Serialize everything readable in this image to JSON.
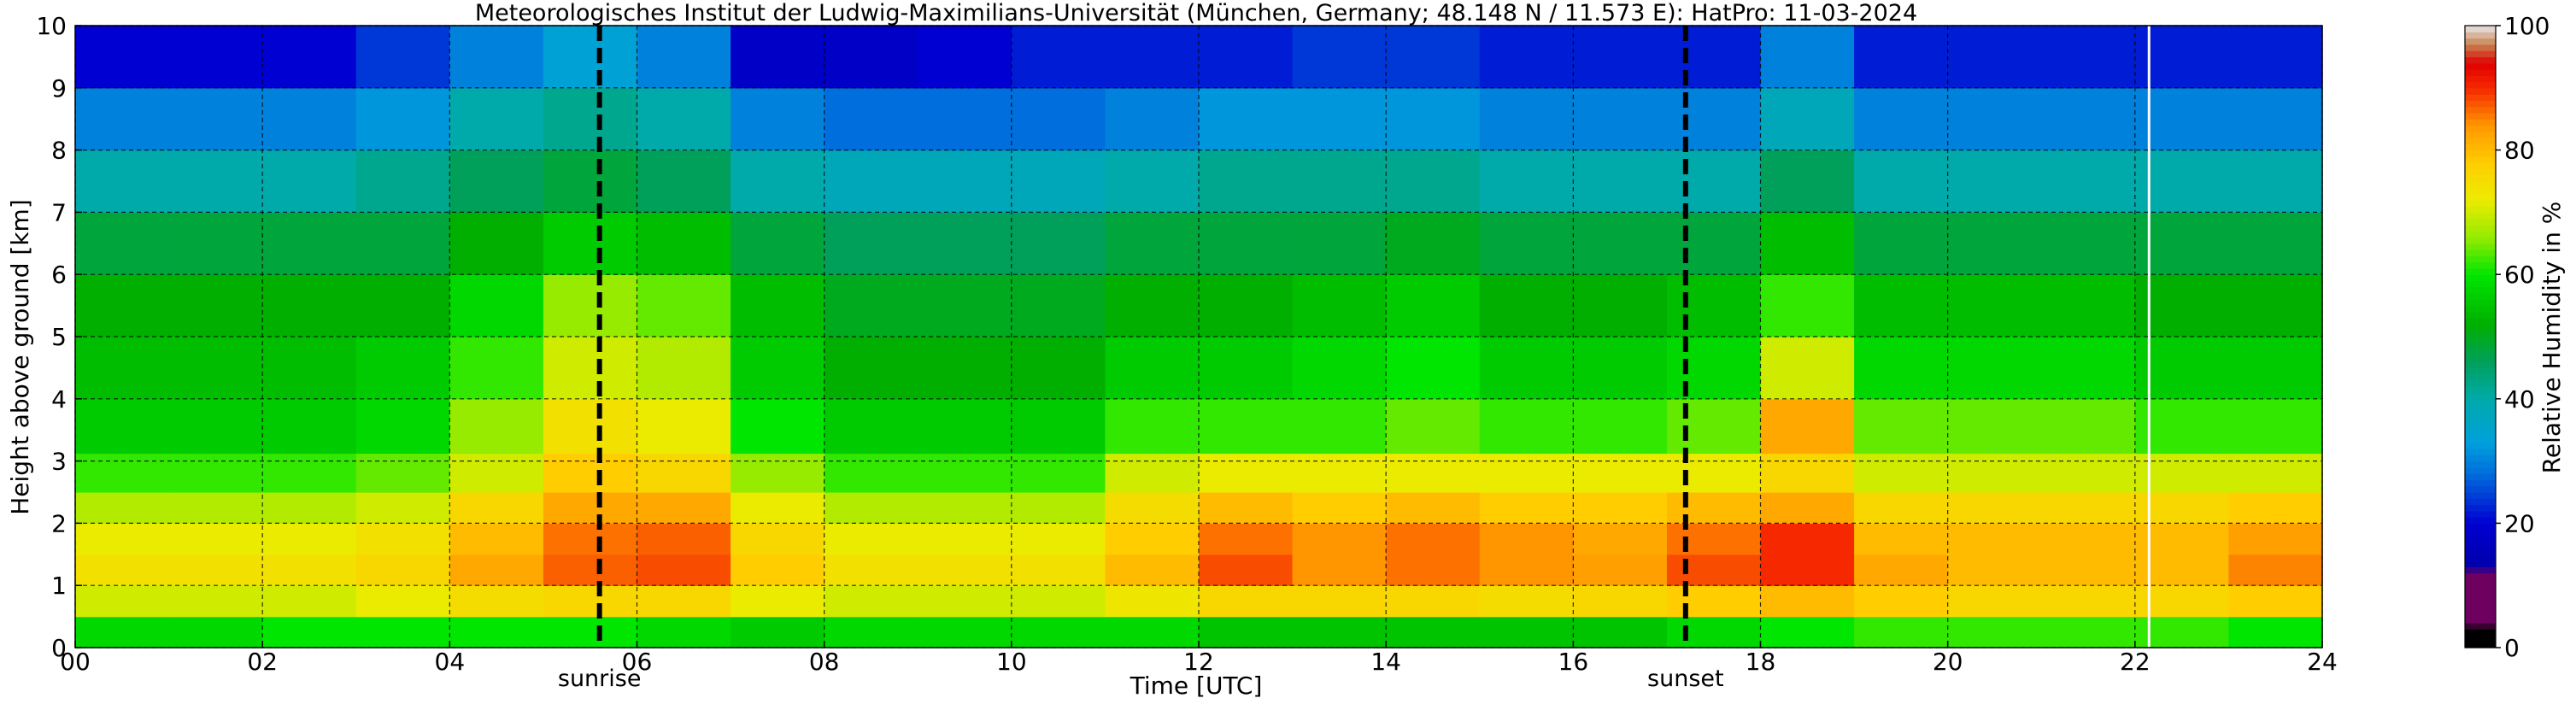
{
  "chart_data": {
    "type": "heatmap",
    "title": "Meteorologisches Institut der Ludwig-Maximilians-Universität (München, Germany; 48.148 N / 11.573 E):    HatPro: 11-03-2024",
    "xlabel": "Time [UTC]",
    "ylabel": "Height above ground [km]",
    "xlim": [
      0,
      24
    ],
    "ylim": [
      0,
      10
    ],
    "xticks": [
      "00",
      "02",
      "04",
      "06",
      "08",
      "10",
      "12",
      "14",
      "16",
      "18",
      "20",
      "22",
      "24"
    ],
    "xtick_values": [
      0,
      2,
      4,
      6,
      8,
      10,
      12,
      14,
      16,
      18,
      20,
      22,
      24
    ],
    "yticks": [
      "0",
      "1",
      "2",
      "3",
      "4",
      "5",
      "6",
      "7",
      "8",
      "9",
      "10"
    ],
    "ytick_values": [
      0,
      1,
      2,
      3,
      4,
      5,
      6,
      7,
      8,
      9,
      10
    ],
    "grid": true,
    "colorbar": {
      "label": "Relative Humidity in %",
      "ticks": [
        "0",
        "20",
        "40",
        "60",
        "80",
        "100"
      ],
      "tick_values": [
        0,
        20,
        40,
        60,
        80,
        100
      ],
      "range": [
        0,
        100
      ]
    },
    "annotations": [
      {
        "label": "sunrise",
        "time": 5.6
      },
      {
        "label": "sunset",
        "time": 17.2
      }
    ],
    "data_gap_times": [
      22.15
    ],
    "z_unit": "%",
    "heights_km": [
      0.25,
      0.75,
      1.25,
      1.75,
      2.25,
      2.75,
      3.5,
      4.5,
      5.5,
      6.5,
      7.5,
      8.5,
      9.5
    ],
    "times_utc": [
      0.5,
      1.5,
      2.5,
      3.5,
      4.5,
      5.5,
      6.5,
      7.5,
      8.5,
      9.5,
      10.5,
      11.5,
      12.5,
      13.5,
      14.5,
      15.5,
      16.5,
      17.5,
      18.5,
      19.5,
      20.5,
      21.5,
      22.5,
      23.5
    ],
    "relative_humidity": [
      [
        58,
        58,
        60,
        60,
        60,
        60,
        58,
        56,
        58,
        58,
        58,
        58,
        55,
        55,
        55,
        55,
        55,
        58,
        60,
        62,
        62,
        62,
        62,
        60
      ],
      [
        70,
        70,
        70,
        72,
        75,
        76,
        76,
        72,
        70,
        70,
        70,
        73,
        76,
        76,
        76,
        75,
        76,
        78,
        80,
        78,
        76,
        76,
        76,
        78
      ],
      [
        74,
        74,
        74,
        76,
        82,
        87,
        88,
        78,
        74,
        74,
        74,
        80,
        88,
        84,
        86,
        84,
        83,
        88,
        90,
        82,
        80,
        80,
        80,
        85
      ],
      [
        72,
        72,
        72,
        74,
        80,
        86,
        87,
        76,
        72,
        72,
        72,
        78,
        86,
        84,
        86,
        84,
        82,
        86,
        90,
        80,
        80,
        80,
        80,
        83
      ],
      [
        68,
        68,
        68,
        70,
        76,
        82,
        82,
        72,
        68,
        68,
        68,
        75,
        80,
        78,
        80,
        78,
        78,
        80,
        82,
        76,
        76,
        76,
        76,
        78
      ],
      [
        62,
        62,
        62,
        64,
        70,
        78,
        76,
        66,
        62,
        62,
        62,
        70,
        72,
        72,
        72,
        72,
        72,
        72,
        76,
        70,
        70,
        70,
        70,
        70
      ],
      [
        56,
        56,
        56,
        58,
        66,
        74,
        72,
        60,
        56,
        56,
        56,
        62,
        62,
        62,
        64,
        62,
        62,
        64,
        82,
        64,
        64,
        64,
        62,
        62
      ],
      [
        54,
        54,
        54,
        56,
        62,
        70,
        68,
        56,
        52,
        52,
        52,
        56,
        56,
        58,
        60,
        56,
        56,
        58,
        70,
        58,
        58,
        58,
        56,
        56
      ],
      [
        52,
        52,
        52,
        52,
        58,
        66,
        64,
        54,
        50,
        50,
        50,
        52,
        52,
        54,
        56,
        52,
        52,
        54,
        62,
        54,
        54,
        54,
        52,
        52
      ],
      [
        48,
        48,
        48,
        48,
        52,
        56,
        54,
        48,
        46,
        46,
        46,
        48,
        48,
        48,
        50,
        48,
        48,
        48,
        54,
        48,
        48,
        48,
        48,
        48
      ],
      [
        40,
        40,
        40,
        42,
        46,
        48,
        46,
        40,
        38,
        38,
        38,
        40,
        42,
        42,
        42,
        40,
        40,
        40,
        46,
        40,
        40,
        40,
        40,
        40
      ],
      [
        30,
        30,
        30,
        32,
        40,
        42,
        40,
        30,
        28,
        28,
        28,
        30,
        32,
        32,
        32,
        30,
        30,
        30,
        38,
        30,
        30,
        30,
        30,
        30
      ],
      [
        20,
        20,
        20,
        24,
        30,
        34,
        30,
        18,
        18,
        20,
        22,
        22,
        22,
        24,
        24,
        22,
        22,
        22,
        30,
        22,
        22,
        22,
        22,
        22
      ]
    ]
  }
}
